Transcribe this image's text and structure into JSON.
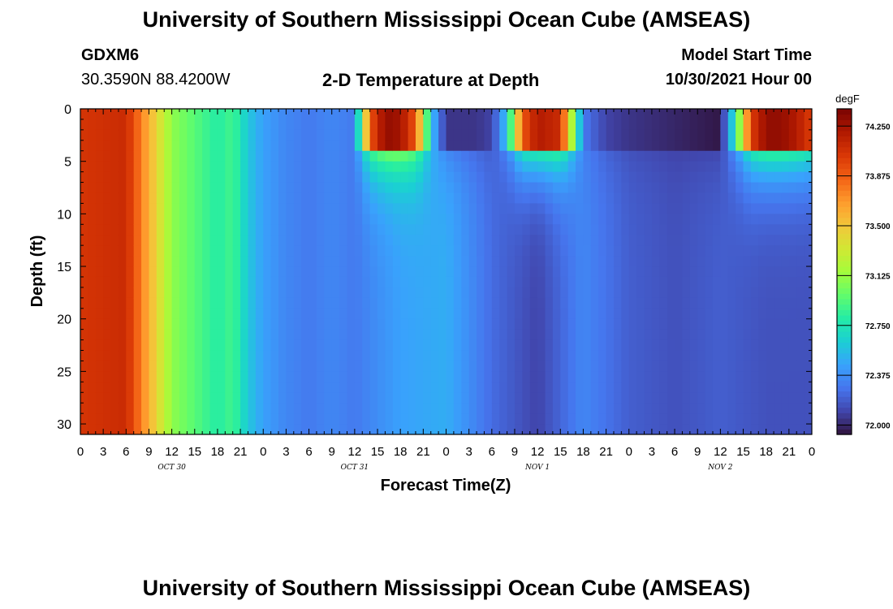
{
  "header": {
    "title": "University of Southern Mississippi Ocean Cube (AMSEAS)",
    "station": "GDXM6",
    "coords": "30.3590N  88.4200W",
    "plot_title": "2-D Temperature at Depth",
    "model_start_label": "Model Start Time",
    "model_start_value": "10/30/2021 Hour 00"
  },
  "footer": {
    "title": "University of Southern Mississippi Ocean Cube (AMSEAS)"
  },
  "chart_data": {
    "type": "heatmap",
    "xlabel": "Forecast Time(Z)",
    "ylabel": "Depth (ft)",
    "xlim": [
      0,
      96
    ],
    "ylim": [
      0,
      31
    ],
    "x_tick_labels": [
      "0",
      "3",
      "6",
      "9",
      "12",
      "15",
      "18",
      "21",
      "0",
      "3",
      "6",
      "9",
      "12",
      "15",
      "18",
      "21",
      "0",
      "3",
      "6",
      "9",
      "12",
      "15",
      "18",
      "21",
      "0",
      "3",
      "6",
      "9",
      "12",
      "15",
      "18",
      "21",
      "0"
    ],
    "date_labels": [
      "OCT 30",
      "OCT 31",
      "NOV 1",
      "NOV 2"
    ],
    "y_ticks": [
      0,
      5,
      10,
      15,
      20,
      25,
      30
    ],
    "colorbar": {
      "unit": "degF",
      "min": 71.93,
      "max": 74.38,
      "tick_values": [
        72.0,
        72.375,
        72.75,
        73.125,
        73.5,
        73.875,
        74.25
      ],
      "tick_labels": [
        "72.000",
        "72.375",
        "72.750",
        "73.125",
        "73.500",
        "73.875",
        "74.250"
      ],
      "colors": [
        "#30123b",
        "#4145ab",
        "#4675ed",
        "#39a2fc",
        "#1bcfd4",
        "#24eca6",
        "#61fc6c",
        "#a4fc3b",
        "#d1e834",
        "#f3c63a",
        "#fe9b2d",
        "#f36315",
        "#d93806",
        "#b11901",
        "#7a0402"
      ]
    },
    "surface_temperature_degF": {
      "hours": [
        0,
        6,
        12,
        16,
        18,
        20,
        22,
        24,
        27,
        30,
        33,
        36,
        38,
        40,
        42,
        44,
        46,
        48,
        52,
        54,
        56,
        58,
        60,
        63,
        66,
        69,
        72,
        78,
        84,
        86,
        88,
        90,
        92,
        94,
        96
      ],
      "values": [
        74.05,
        74.1,
        73.1,
        72.9,
        72.8,
        72.9,
        72.6,
        72.45,
        72.35,
        72.3,
        72.35,
        72.3,
        73.9,
        74.3,
        74.25,
        73.9,
        72.6,
        72.05,
        72.05,
        72.1,
        72.6,
        73.9,
        74.2,
        74.1,
        72.3,
        72.1,
        72.05,
        72.0,
        71.95,
        72.8,
        74.0,
        74.3,
        74.3,
        74.2,
        74.0
      ]
    },
    "bottom_temperature_degF": {
      "hours": [
        0,
        6,
        12,
        16,
        18,
        20,
        22,
        24,
        27,
        30,
        33,
        36,
        42,
        48,
        54,
        60,
        66,
        72,
        78,
        84,
        90,
        96
      ],
      "values": [
        74.05,
        74.1,
        73.1,
        72.9,
        72.8,
        72.9,
        72.6,
        72.45,
        72.35,
        72.3,
        72.35,
        72.3,
        72.45,
        72.5,
        72.25,
        72.1,
        72.35,
        72.2,
        72.15,
        72.2,
        72.15,
        72.15
      ]
    }
  }
}
